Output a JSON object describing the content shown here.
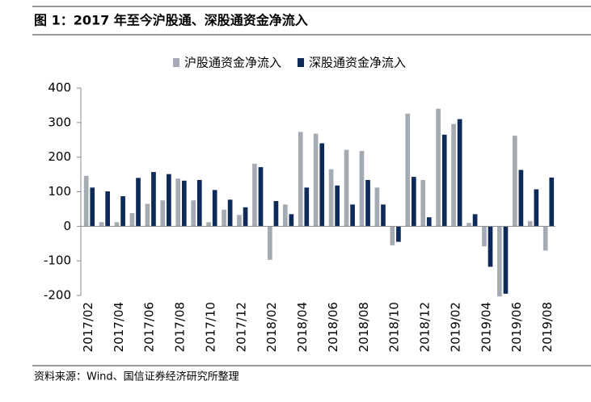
{
  "chart_data": {
    "type": "bar",
    "title": "图 1：2017 年至今沪股通、深股通资金净流入",
    "source": "资料来源：Wind、国信证券经济研究所整理",
    "categories": [
      "2017/02",
      null,
      "2017/04",
      null,
      "2017/06",
      null,
      "2017/08",
      null,
      "2017/10",
      null,
      "2017/12",
      null,
      "2018/02",
      null,
      "2018/04",
      null,
      "2018/06",
      null,
      "2018/08",
      null,
      "2018/10",
      null,
      "2018/12",
      null,
      "2019/02",
      null,
      "2019/04",
      null,
      "2019/06",
      null,
      "2019/08"
    ],
    "series": [
      {
        "name": "沪股通资金净流入",
        "color": "#a5abb3",
        "values": [
          146,
          12,
          12,
          38,
          65,
          75,
          138,
          75,
          12,
          48,
          33,
          181,
          -97,
          63,
          273,
          268,
          165,
          221,
          218,
          112,
          -55,
          326,
          134,
          340,
          296,
          10,
          -58,
          -203,
          262,
          15,
          -70
        ]
      },
      {
        "name": "深股通资金净流入",
        "color": "#0d2a59",
        "values": [
          112,
          101,
          87,
          140,
          157,
          151,
          132,
          134,
          105,
          77,
          55,
          171,
          73,
          35,
          112,
          240,
          118,
          63,
          134,
          63,
          -45,
          143,
          26,
          265,
          310,
          35,
          -117,
          -195,
          163,
          107,
          141
        ]
      }
    ],
    "ylim": [
      -200,
      400
    ],
    "yticks": [
      -200,
      -100,
      0,
      100,
      200,
      300,
      400
    ],
    "grid": false,
    "legend": "top"
  }
}
